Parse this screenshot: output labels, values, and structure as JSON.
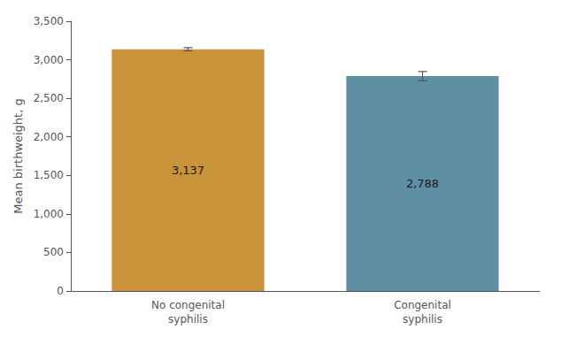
{
  "chart_data": {
    "type": "bar",
    "categories": [
      "No congenital\nsyphilis",
      "Congenital\nsyphilis"
    ],
    "values": [
      3137,
      2788
    ],
    "errors": [
      20,
      60
    ],
    "colors": [
      "#C9933A",
      "#5E8FA3"
    ],
    "data_labels": true,
    "value_labels": [
      "3,137",
      "2,788"
    ],
    "ylabel": "Mean birthweight, g",
    "ylim": [
      0,
      3500
    ],
    "yticks": [
      0,
      500,
      {
        "value": 1000,
        "label": "1,000"
      },
      {
        "value": 1500,
        "label": "1,500"
      },
      {
        "value": 2000,
        "label": "2,000"
      },
      {
        "value": 2500,
        "label": "2,500"
      },
      {
        "value": 3000,
        "label": "3,000"
      },
      {
        "value": 3500,
        "label": "3,500"
      }
    ],
    "grid": false
  }
}
